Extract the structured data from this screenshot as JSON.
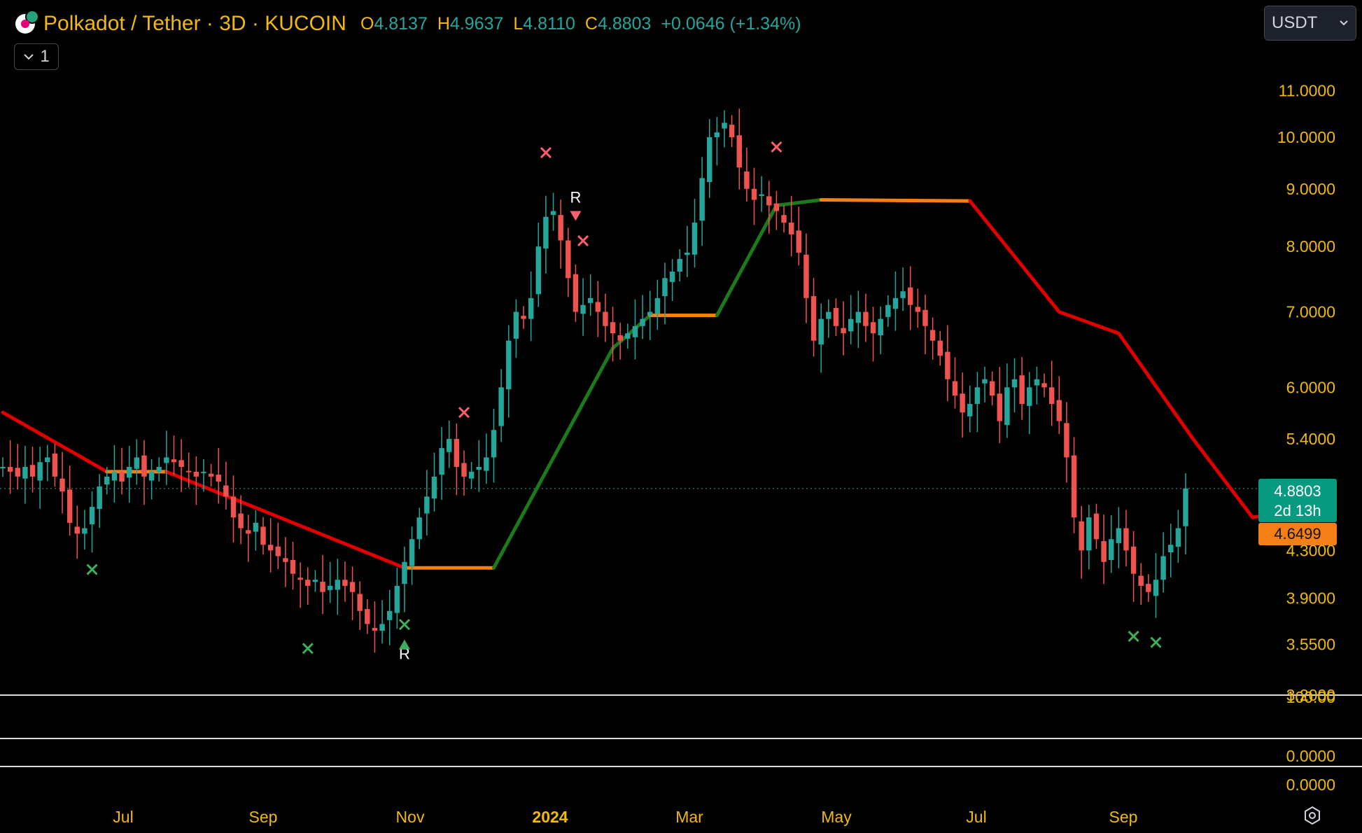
{
  "header": {
    "title": "Polkadot / Tether · 3D · KUCOIN",
    "ohlc": [
      {
        "label": "O",
        "value": "4.8137"
      },
      {
        "label": "H",
        "value": "4.9637"
      },
      {
        "label": "L",
        "value": "4.8110"
      },
      {
        "label": "C",
        "value": "4.8803"
      }
    ],
    "change": "+0.0646 (+1.34%)",
    "collapse_label": "1"
  },
  "currency": {
    "label": "USDT"
  },
  "price_tags": {
    "last_price": "4.8803",
    "countdown": "2d 13h",
    "supertrend": "4.6499"
  },
  "icons": [
    "chevron-down-icon",
    "settings-gear-icon",
    "polkadot-logo-icon"
  ],
  "colors": {
    "up": "#26a69a",
    "down": "#ef5350",
    "trend_up": "#1b7a1b",
    "trend_down": "#e00000",
    "trend_flat": "#f57f17",
    "axis_text": "#f0b90b"
  },
  "chart_data": {
    "type": "candlestick",
    "scale": "log",
    "ylim": [
      3.2,
      12.5
    ],
    "y_ticks": [
      "11.0000",
      "10.0000",
      "9.0000",
      "8.0000",
      "7.0000",
      "6.0000",
      "5.4000",
      "4.3000",
      "3.9000",
      "3.5500",
      "3.2000"
    ],
    "x_ticks": [
      "Jul",
      "Sep",
      "Nov",
      "2024",
      "Mar",
      "May",
      "Jul",
      "Sep"
    ],
    "close_series": [
      5.1,
      5.05,
      5.0,
      5.1,
      5.0,
      5.15,
      5.2,
      5.0,
      4.85,
      4.55,
      4.45,
      4.5,
      4.7,
      4.9,
      5.0,
      5.05,
      4.95,
      5.1,
      5.2,
      5.0,
      5.05,
      5.1,
      5.2,
      5.15,
      5.1,
      5.05,
      5.0,
      5.05,
      5.0,
      4.95,
      4.8,
      4.6,
      4.5,
      4.45,
      4.55,
      4.35,
      4.3,
      4.25,
      4.2,
      4.1,
      4.05,
      4.0,
      4.05,
      3.95,
      4.0,
      4.05,
      4.0,
      3.95,
      3.8,
      3.7,
      3.65,
      3.7,
      3.8,
      4.0,
      4.2,
      4.4,
      4.6,
      4.8,
      5.0,
      5.3,
      5.4,
      5.1,
      5.0,
      5.05,
      5.1,
      5.2,
      5.5,
      6.0,
      6.6,
      7.0,
      6.9,
      7.2,
      8.0,
      8.5,
      8.6,
      8.1,
      7.5,
      7.0,
      7.1,
      7.2,
      7.0,
      6.8,
      6.7,
      6.6,
      6.7,
      6.8,
      6.9,
      7.0,
      7.2,
      7.5,
      7.6,
      7.8,
      7.9,
      8.4,
      9.2,
      10.0,
      10.1,
      10.3,
      10.0,
      9.4,
      9.0,
      8.8,
      8.9,
      8.7,
      8.6,
      8.4,
      8.2,
      7.9,
      7.2,
      6.6,
      6.9,
      7.0,
      6.8,
      6.7,
      6.9,
      7.0,
      6.8,
      6.7,
      6.9,
      7.1,
      7.2,
      7.3,
      7.1,
      7.0,
      6.8,
      6.6,
      6.4,
      6.1,
      5.9,
      5.7,
      5.8,
      6.0,
      6.1,
      5.9,
      5.6,
      6.0,
      6.1,
      5.8,
      6.0,
      6.1,
      6.0,
      5.8,
      5.6,
      5.2,
      4.6,
      4.3,
      4.6,
      4.4,
      4.2,
      4.4,
      4.5,
      4.3,
      4.1,
      4.0,
      3.95,
      4.05,
      4.25,
      4.35,
      4.5,
      4.88
    ],
    "supertrend_segments": [
      {
        "state": "down",
        "points": [
          [
            0,
            5.7
          ],
          [
            14,
            5.05
          ]
        ]
      },
      {
        "state": "flat",
        "points": [
          [
            14,
            5.05
          ],
          [
            22,
            5.05
          ]
        ]
      },
      {
        "state": "down",
        "points": [
          [
            22,
            5.05
          ],
          [
            54,
            4.15
          ]
        ]
      },
      {
        "state": "flat",
        "points": [
          [
            54,
            4.15
          ],
          [
            66,
            4.15
          ]
        ]
      },
      {
        "state": "up",
        "points": [
          [
            66,
            4.15
          ],
          [
            82,
            6.5
          ],
          [
            87,
            6.95
          ]
        ]
      },
      {
        "state": "flat",
        "points": [
          [
            87,
            6.95
          ],
          [
            96,
            6.95
          ]
        ]
      },
      {
        "state": "up",
        "points": [
          [
            96,
            6.95
          ],
          [
            104,
            8.7
          ],
          [
            110,
            8.8
          ]
        ]
      },
      {
        "state": "flat",
        "points": [
          [
            110,
            8.8
          ],
          [
            130,
            8.78
          ]
        ]
      },
      {
        "state": "down",
        "points": [
          [
            130,
            8.78
          ],
          [
            142,
            7.0
          ],
          [
            150,
            6.7
          ],
          [
            160,
            5.4
          ],
          [
            168,
            4.6
          ],
          [
            172,
            4.65
          ]
        ]
      },
      {
        "state": "flat",
        "points": [
          [
            172,
            4.65
          ],
          [
            174,
            4.65
          ]
        ]
      }
    ],
    "signals": [
      {
        "type": "sell",
        "i": 62
      },
      {
        "type": "sell",
        "i": 73
      },
      {
        "type": "sell",
        "i": 78
      },
      {
        "type": "sell",
        "i": 104
      },
      {
        "type": "buy",
        "i": 12
      },
      {
        "type": "buy",
        "i": 41
      },
      {
        "type": "buy",
        "i": 54
      },
      {
        "type": "buy",
        "i": 152
      },
      {
        "type": "buy",
        "i": 155
      }
    ],
    "reversal_labels": [
      {
        "text": "R",
        "i": 54,
        "position": "below"
      },
      {
        "text": "R",
        "i": 77,
        "position": "above"
      }
    ],
    "panes": {
      "lower_1": {
        "tick": "100.00"
      },
      "lower_2": {
        "tick": "0.0000"
      },
      "lower_3": {
        "tick": "0.0000"
      }
    }
  }
}
